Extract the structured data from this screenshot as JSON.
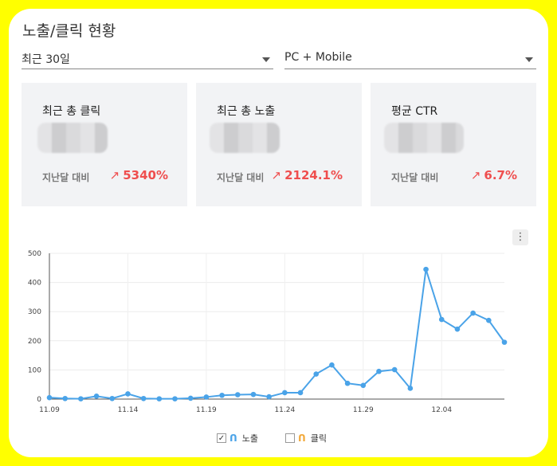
{
  "header": {
    "title": "노출/클릭 현황"
  },
  "filters": {
    "period": "최근 30일",
    "device": "PC + Mobile"
  },
  "stats": [
    {
      "label": "최근 총 클릭",
      "compare_label": "지난달 대비",
      "arrow": "↗",
      "change": "5340%"
    },
    {
      "label": "최근 총 노출",
      "compare_label": "지난달 대비",
      "arrow": "↗",
      "change": "2124.1%"
    },
    {
      "label": "평균 CTR",
      "compare_label": "지난달 대비",
      "arrow": "↗",
      "change": "6.7%"
    }
  ],
  "chart_menu_icon": "more-vertical-icon",
  "legend": [
    {
      "label": "노출",
      "checked": true,
      "color": "#4aa3e8",
      "icon": "line-series-icon"
    },
    {
      "label": "클릭",
      "checked": false,
      "color": "#f2a93b",
      "icon": "line-series-icon"
    }
  ],
  "colors": {
    "accent_up": "#ef4e4e",
    "series_impressions": "#4aa3e8",
    "background": "#ffff00"
  },
  "chart_data": {
    "type": "line",
    "x_tick_labels": [
      "11.09",
      "11.14",
      "11.19",
      "11.24",
      "11.29",
      "12.04"
    ],
    "y_ticks": [
      0,
      100,
      200,
      300,
      400,
      500
    ],
    "ylim": [
      0,
      500
    ],
    "grid": true,
    "legend_position": "bottom",
    "x": [
      "11.09",
      "11.10",
      "11.11",
      "11.12",
      "11.13",
      "11.14",
      "11.15",
      "11.16",
      "11.17",
      "11.18",
      "11.19",
      "11.20",
      "11.21",
      "11.22",
      "11.23",
      "11.24",
      "11.25",
      "11.26",
      "11.27",
      "11.28",
      "11.29",
      "11.30",
      "12.01",
      "12.02",
      "12.03",
      "12.04",
      "12.05",
      "12.06",
      "12.07",
      "12.08"
    ],
    "series": [
      {
        "name": "노출",
        "values": [
          5,
          2,
          1,
          10,
          2,
          18,
          2,
          1,
          1,
          3,
          7,
          13,
          15,
          16,
          8,
          22,
          22,
          86,
          117,
          54,
          47,
          95,
          101,
          37,
          445,
          273,
          240,
          295,
          270,
          195
        ]
      }
    ]
  }
}
